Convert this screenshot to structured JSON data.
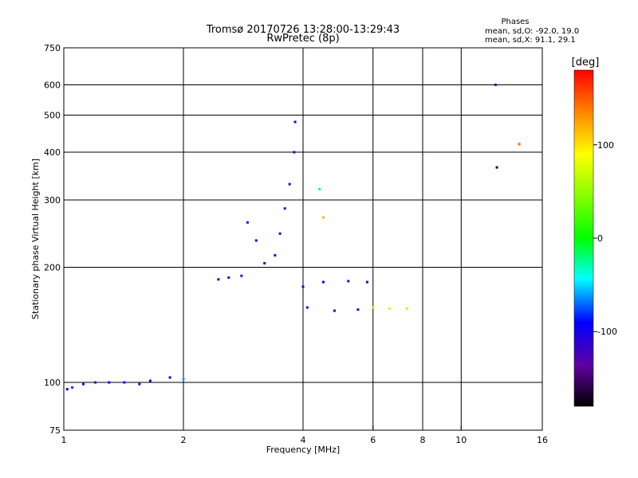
{
  "chart_data": {
    "type": "scatter",
    "title": "Tromsø 20170726 13:28:00-13:29:43",
    "subtitle": "RwPretec (8p)",
    "xlabel": "Frequency [MHz]",
    "ylabel": "Stationary phase Virtual Height [km]",
    "x_scale": "log",
    "y_scale": "log",
    "xlim": [
      1,
      16
    ],
    "ylim": [
      75,
      750
    ],
    "x_ticks": [
      1,
      2,
      4,
      6,
      8,
      10,
      16
    ],
    "x_tick_labels": [
      "1",
      "2",
      "4",
      "6",
      "8",
      "10",
      "16"
    ],
    "y_ticks": [
      75,
      100,
      200,
      300,
      400,
      500,
      600,
      750
    ],
    "y_tick_labels": [
      "75",
      "100",
      "200",
      "300",
      "400",
      "500",
      "600",
      "750"
    ],
    "grid": true,
    "stats": {
      "heading": "Phases",
      "line_o": "mean, sd,O:  -92.0, 19.0",
      "line_x": "mean, sd,X:  91.1, 29.1"
    },
    "colorbar": {
      "label": "[deg]",
      "range": [
        -180,
        180
      ],
      "tick_values": [
        100,
        0,
        -100
      ],
      "tick_labels": [
        "100",
        "0",
        "-100"
      ]
    },
    "points_summary": [
      {
        "x": 1.02,
        "y": 96,
        "c": -100
      },
      {
        "x": 1.05,
        "y": 97,
        "c": -80
      },
      {
        "x": 1.12,
        "y": 99,
        "c": -110
      },
      {
        "x": 1.2,
        "y": 100,
        "c": -120
      },
      {
        "x": 1.3,
        "y": 100,
        "c": -105
      },
      {
        "x": 1.42,
        "y": 100,
        "c": -95
      },
      {
        "x": 1.55,
        "y": 99,
        "c": -115
      },
      {
        "x": 1.65,
        "y": 101,
        "c": -100
      },
      {
        "x": 1.85,
        "y": 103,
        "c": -90
      },
      {
        "x": 2.0,
        "y": 102,
        "c": -60
      },
      {
        "x": 2.45,
        "y": 186,
        "c": -105
      },
      {
        "x": 2.6,
        "y": 188,
        "c": -100
      },
      {
        "x": 2.8,
        "y": 190,
        "c": -85
      },
      {
        "x": 2.9,
        "y": 262,
        "c": -110
      },
      {
        "x": 3.05,
        "y": 235,
        "c": -100
      },
      {
        "x": 3.2,
        "y": 205,
        "c": -105
      },
      {
        "x": 3.4,
        "y": 215,
        "c": -115
      },
      {
        "x": 3.5,
        "y": 245,
        "c": -110
      },
      {
        "x": 3.6,
        "y": 285,
        "c": -120
      },
      {
        "x": 3.7,
        "y": 330,
        "c": -115
      },
      {
        "x": 3.8,
        "y": 400,
        "c": -110
      },
      {
        "x": 3.82,
        "y": 480,
        "c": -105
      },
      {
        "x": 4.0,
        "y": 178,
        "c": -100
      },
      {
        "x": 4.5,
        "y": 183,
        "c": -95
      },
      {
        "x": 5.2,
        "y": 184,
        "c": -105
      },
      {
        "x": 5.8,
        "y": 183,
        "c": -110
      },
      {
        "x": 4.1,
        "y": 157,
        "c": -110
      },
      {
        "x": 4.8,
        "y": 154,
        "c": -105
      },
      {
        "x": 5.5,
        "y": 155,
        "c": -100
      },
      {
        "x": 6.0,
        "y": 157,
        "c": 75
      },
      {
        "x": 6.6,
        "y": 156,
        "c": 85
      },
      {
        "x": 7.3,
        "y": 156,
        "c": 110
      },
      {
        "x": 4.5,
        "y": 270,
        "c": 120
      },
      {
        "x": 4.4,
        "y": 320,
        "c": -30
      },
      {
        "x": 12.2,
        "y": 600,
        "c": -110
      },
      {
        "x": 12.3,
        "y": 365,
        "c": -170
      },
      {
        "x": 14.0,
        "y": 420,
        "c": 145
      }
    ]
  }
}
